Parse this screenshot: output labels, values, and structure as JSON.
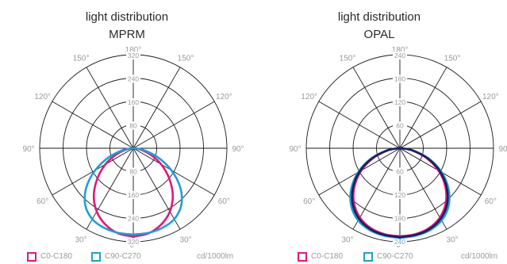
{
  "chart_data": [
    {
      "type": "polar",
      "title": "light distribution",
      "subtitle": "MPRM",
      "unit": "cd/1000lm",
      "radial_ticks": [
        "80",
        "160",
        "240",
        "320"
      ],
      "radial_max": 320,
      "angle_labels": [
        "180°",
        "150°",
        "150°",
        "120°",
        "120°",
        "90°",
        "90°",
        "60°",
        "60°",
        "30°",
        "30°",
        "0°"
      ],
      "series": [
        {
          "name": "C0-C180",
          "color": "#e0187d",
          "angles": [
            0,
            10,
            20,
            30,
            40,
            50,
            60,
            70,
            80,
            90
          ],
          "values": [
            302,
            296,
            278,
            250,
            210,
            160,
            110,
            62,
            25,
            3
          ]
        },
        {
          "name": "C90-C270",
          "color": "#1e9fd8",
          "angles": [
            0,
            10,
            20,
            30,
            40,
            50,
            60,
            70,
            80,
            90
          ],
          "values": [
            295,
            294,
            290,
            280,
            255,
            210,
            150,
            88,
            35,
            4
          ]
        }
      ]
    },
    {
      "type": "polar",
      "title": "light distribution",
      "subtitle": "OPAL",
      "unit": "cd/1000lm",
      "radial_ticks": [
        "60",
        "120",
        "180",
        "240"
      ],
      "radial_max": 240,
      "angle_labels": [
        "180°",
        "150°",
        "150°",
        "120°",
        "120°",
        "90°",
        "90°",
        "60°",
        "60°",
        "30°",
        "30°",
        "0°"
      ],
      "series": [
        {
          "name": "C0-C180",
          "color": "#e0187d",
          "angles": [
            0,
            10,
            20,
            30,
            40,
            50,
            60,
            70,
            80,
            90
          ],
          "values": [
            226,
            224,
            218,
            205,
            183,
            152,
            114,
            72,
            32,
            5
          ]
        },
        {
          "name": "C90-C270",
          "color": "#1e9fd8",
          "angles": [
            0,
            10,
            20,
            30,
            40,
            50,
            60,
            70,
            80,
            90
          ],
          "values": [
            230,
            228,
            224,
            214,
            194,
            163,
            124,
            80,
            36,
            5
          ]
        },
        {
          "name": "",
          "color": "#1b1f5e",
          "angles": [
            0,
            10,
            20,
            30,
            40,
            50,
            60,
            70,
            80,
            90
          ],
          "values": [
            228,
            226,
            221,
            209,
            188,
            157,
            119,
            76,
            34,
            5
          ]
        }
      ]
    }
  ]
}
